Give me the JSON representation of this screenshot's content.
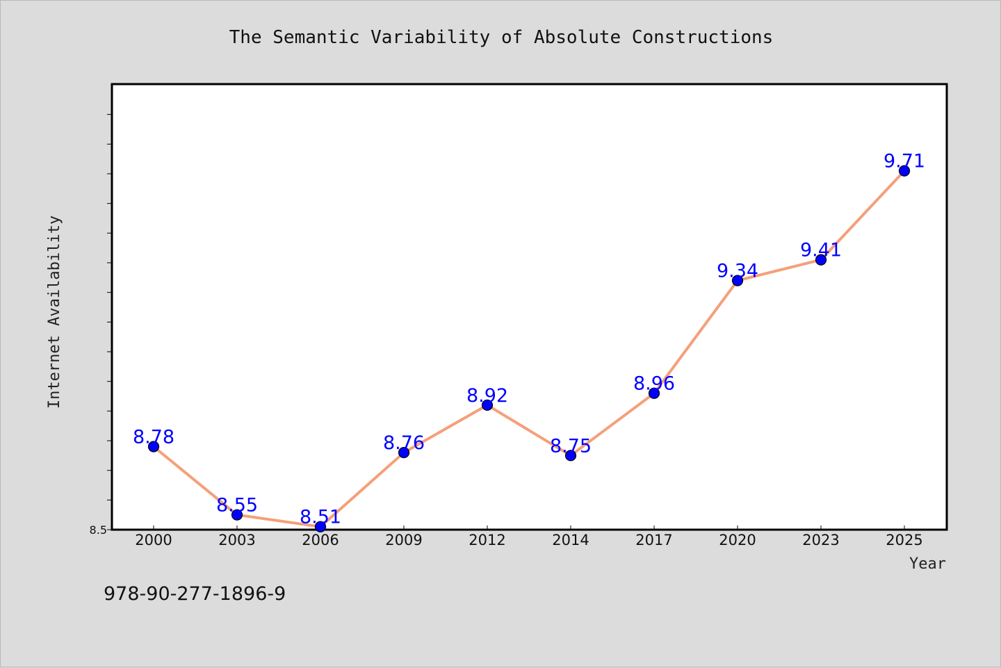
{
  "footnote": "978-90-277-1896-9",
  "chart_data": {
    "type": "line",
    "title": "The Semantic Variability of Absolute Constructions",
    "xlabel": "Year",
    "ylabel": "Internet Availability",
    "categories": [
      "2000",
      "2003",
      "2006",
      "2009",
      "2012",
      "2014",
      "2017",
      "2020",
      "2023",
      "2025"
    ],
    "series": [
      {
        "values": [
          8.78,
          8.55,
          8.51,
          8.76,
          8.92,
          8.75,
          8.96,
          9.34,
          9.41,
          9.71
        ],
        "data_labels": [
          "8.78",
          "8.55",
          "8.51",
          "8.76",
          "8.92",
          "8.75",
          "8.96",
          "9.34",
          "9.41",
          "9.71"
        ],
        "line_color": "#f4a07a",
        "marker_color": "#0000ff",
        "label_color": "#0000ff"
      }
    ],
    "ylim": [
      8.5,
      10.0
    ],
    "ytick_labels": [
      "8.5"
    ],
    "grid": false,
    "legend": "none"
  }
}
